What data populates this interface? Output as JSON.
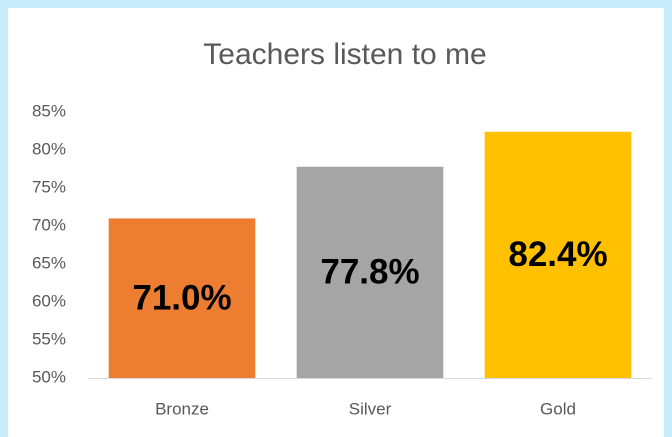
{
  "chart_data": {
    "type": "bar",
    "title": "Teachers listen to me",
    "categories": [
      "Bronze",
      "Silver",
      "Gold"
    ],
    "values": [
      71.0,
      77.8,
      82.4
    ],
    "value_labels": [
      "71.0%",
      "77.8%",
      "82.4%"
    ],
    "colors": [
      "#ED7D31",
      "#A5A5A5",
      "#FFC000"
    ],
    "ylim": [
      50,
      85
    ],
    "yticks": [
      {
        "value": 50,
        "label": "50%"
      },
      {
        "value": 55,
        "label": "55%"
      },
      {
        "value": 60,
        "label": "60%"
      },
      {
        "value": 65,
        "label": "65%"
      },
      {
        "value": 70,
        "label": "70%"
      },
      {
        "value": 75,
        "label": "75%"
      },
      {
        "value": 80,
        "label": "80%"
      },
      {
        "value": 85,
        "label": "85%"
      }
    ],
    "grid": false
  }
}
